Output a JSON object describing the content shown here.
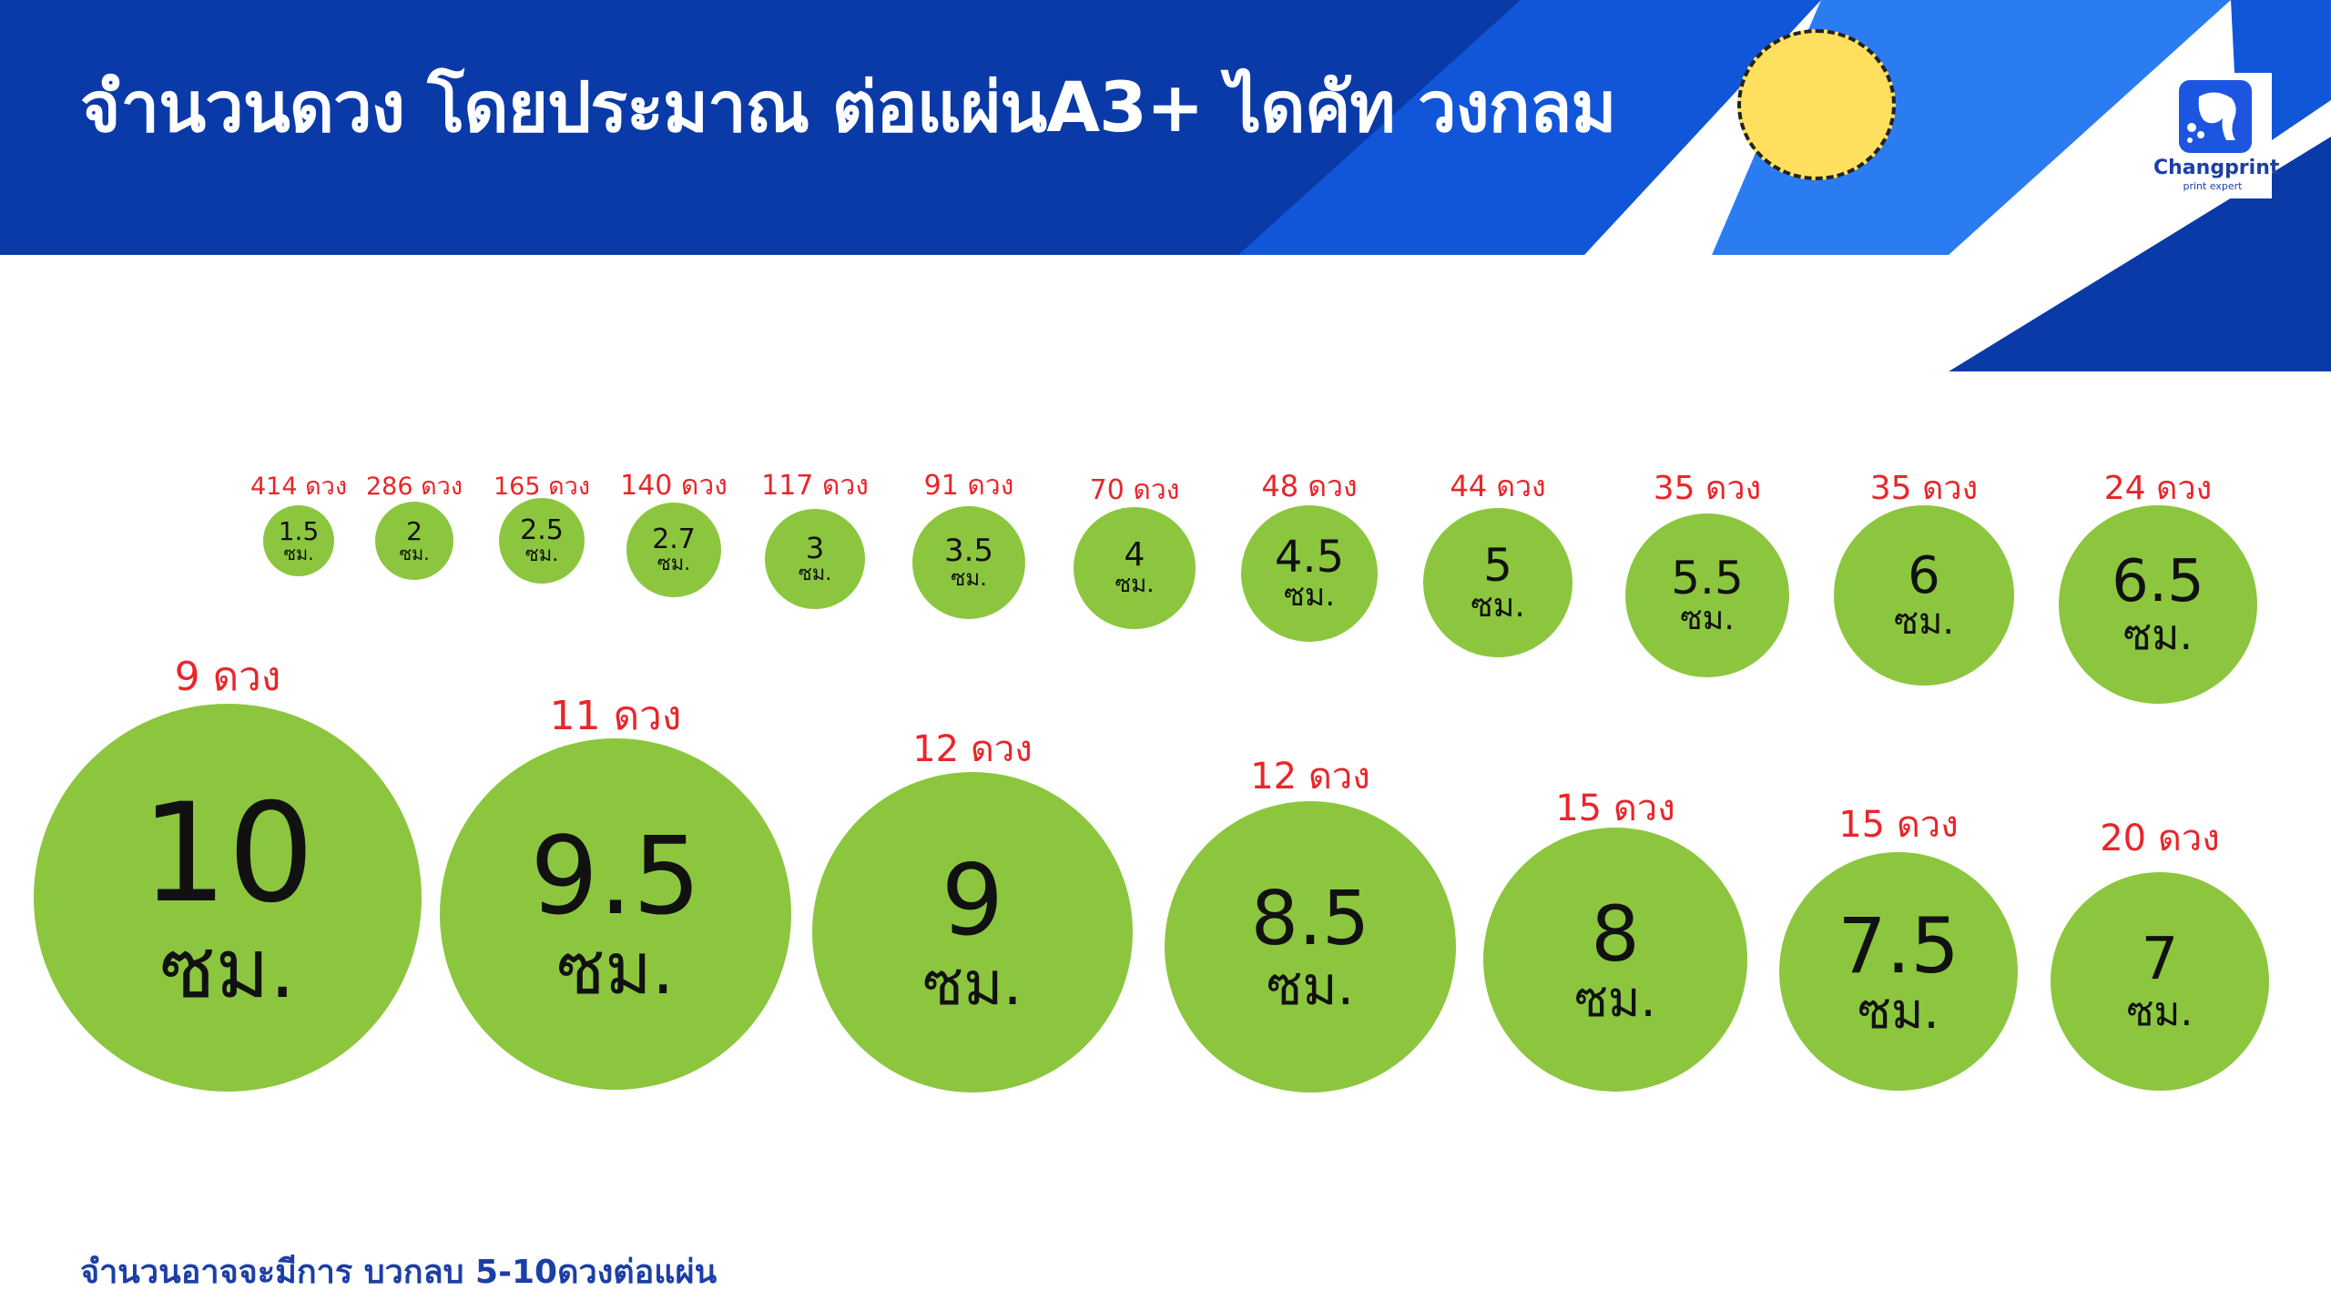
{
  "header": {
    "title": "จำนวนดวง โดยประมาณ ต่อแผ่นA3+  ไดคัท วงกลม",
    "banner_color": "#0a3aa8",
    "accent_color": "#2a7cf0"
  },
  "logo": {
    "name": "Changprint",
    "tagline": "print expert"
  },
  "circles": [
    {
      "size": "1.5",
      "unit": "ซม.",
      "count": "414 ดวง"
    },
    {
      "size": "2",
      "unit": "ซม.",
      "count": "286 ดวง"
    },
    {
      "size": "2.5",
      "unit": "ซม.",
      "count": "165 ดวง"
    },
    {
      "size": "2.7",
      "unit": "ซม.",
      "count": "140 ดวง"
    },
    {
      "size": "3",
      "unit": "ซม.",
      "count": "117 ดวง"
    },
    {
      "size": "3.5",
      "unit": "ซม.",
      "count": "91 ดวง"
    },
    {
      "size": "4",
      "unit": "ซม.",
      "count": "70 ดวง"
    },
    {
      "size": "4.5",
      "unit": "ซม.",
      "count": "48 ดวง"
    },
    {
      "size": "5",
      "unit": "ซม.",
      "count": "44 ดวง"
    },
    {
      "size": "5.5",
      "unit": "ซม.",
      "count": "35 ดวง"
    },
    {
      "size": "6",
      "unit": "ซม.",
      "count": "35 ดวง"
    },
    {
      "size": "6.5",
      "unit": "ซม.",
      "count": "24 ดวง"
    },
    {
      "size": "10",
      "unit": "ซม.",
      "count": "9 ดวง"
    },
    {
      "size": "9.5",
      "unit": "ซม.",
      "count": "11 ดวง"
    },
    {
      "size": "9",
      "unit": "ซม.",
      "count": "12 ดวง"
    },
    {
      "size": "8.5",
      "unit": "ซม.",
      "count": "12 ดวง"
    },
    {
      "size": "8",
      "unit": "ซม.",
      "count": "15 ดวง"
    },
    {
      "size": "7.5",
      "unit": "ซม.",
      "count": "15 ดวง"
    },
    {
      "size": "7",
      "unit": "ซม.",
      "count": "20 ดวง"
    }
  ],
  "circle_color": "#8cc63f",
  "count_color": "#e8262a",
  "footnote": "จำนวนอาจจะมีการ บวกลบ 5-10ดวงต่อแผ่น"
}
